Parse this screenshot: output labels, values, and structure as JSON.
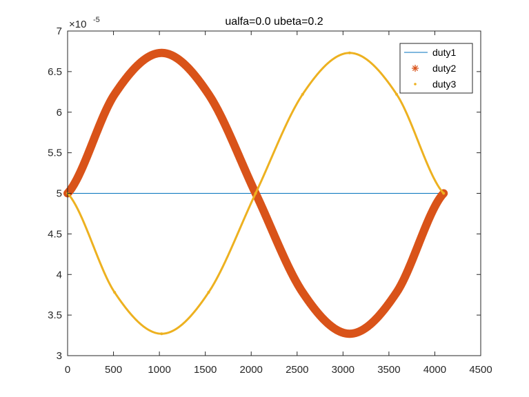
{
  "chart_data": {
    "type": "line",
    "title": "ualfa=0.0  ubeta=0.2",
    "xlabel": "",
    "ylabel": "",
    "xlim": [
      0,
      4500
    ],
    "ylim": [
      3e-05,
      7e-05
    ],
    "x_ticks": [
      0,
      500,
      1000,
      1500,
      2000,
      2500,
      3000,
      3500,
      4000,
      4500
    ],
    "x_tick_labels": [
      "0",
      "500",
      "1000",
      "1500",
      "2000",
      "2500",
      "3000",
      "3500",
      "4000",
      "4500"
    ],
    "y_ticks": [
      3,
      3.5,
      4,
      4.5,
      5,
      5.5,
      6,
      6.5,
      7
    ],
    "y_tick_labels": [
      "3",
      "3.5",
      "4",
      "4.5",
      "5",
      "5.5",
      "6",
      "6.5",
      "7"
    ],
    "y_exponent_base": "×10",
    "y_exponent_power": "-5",
    "grid": false,
    "legend_position": "top-right",
    "series": [
      {
        "name": "duty1",
        "marker": "line",
        "color": "#0072BD",
        "x": [
          0,
          4096
        ],
        "y": [
          5e-05,
          5e-05
        ]
      },
      {
        "name": "duty2",
        "marker": "asterisk",
        "color": "#D95319",
        "x": [
          0,
          512,
          1024,
          1536,
          2048,
          2560,
          3072,
          3584,
          4096
        ],
        "y": [
          5e-05,
          6.22e-05,
          6.73e-05,
          6.22e-05,
          5e-05,
          3.78e-05,
          3.27e-05,
          3.78e-05,
          5e-05
        ]
      },
      {
        "name": "duty3",
        "marker": "point",
        "color": "#EDB120",
        "x": [
          0,
          512,
          1024,
          1536,
          2048,
          2560,
          3072,
          3584,
          4096
        ],
        "y": [
          5e-05,
          3.78e-05,
          3.27e-05,
          3.78e-05,
          5e-05,
          6.22e-05,
          6.73e-05,
          6.22e-05,
          5e-05
        ]
      }
    ]
  }
}
